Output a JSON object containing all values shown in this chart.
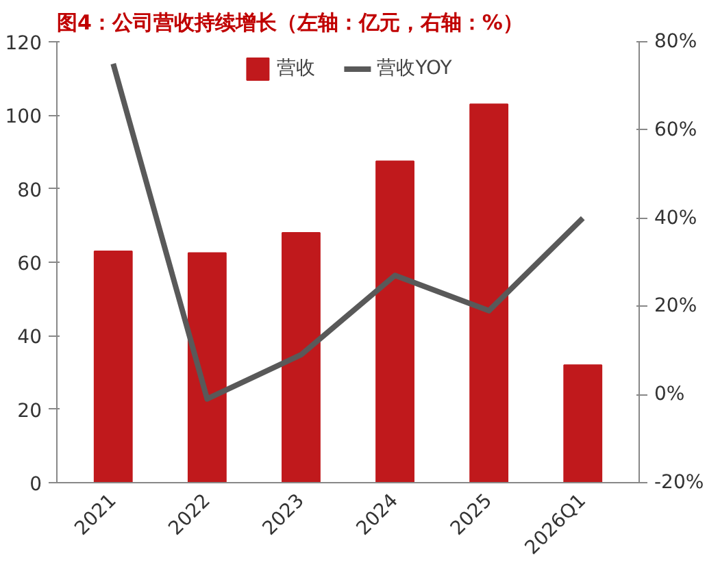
{
  "chart_data": {
    "type": "bar",
    "title": "图4：公司营收持续增长（左轴：亿元，右轴：%）",
    "categories": [
      "2021",
      "2022",
      "2023",
      "2024",
      "2025",
      "2026Q1"
    ],
    "series": [
      {
        "name": "营收",
        "color": "#c0191c",
        "values": [
          63,
          62.5,
          68,
          87.5,
          103,
          32
        ]
      },
      {
        "name": "营收YOY",
        "type": "line",
        "axis": "y2",
        "color": "#595959",
        "values": [
          75,
          -1,
          9,
          27,
          19,
          40
        ]
      }
    ],
    "ylim": [
      0,
      120
    ],
    "yticks": [
      0,
      20,
      40,
      60,
      80,
      100,
      120
    ],
    "y2lim": [
      -20,
      80
    ],
    "y2ticks": [
      {
        "value": -20,
        "label": "-20%"
      },
      {
        "value": 0,
        "label": "0%"
      },
      {
        "value": 20,
        "label": "20%"
      },
      {
        "value": 40,
        "label": "40%"
      },
      {
        "value": 60,
        "label": "60%"
      },
      {
        "value": 80,
        "label": "80%"
      }
    ],
    "grid": false,
    "legend": "top",
    "line_style": "solid",
    "marker": "none"
  }
}
